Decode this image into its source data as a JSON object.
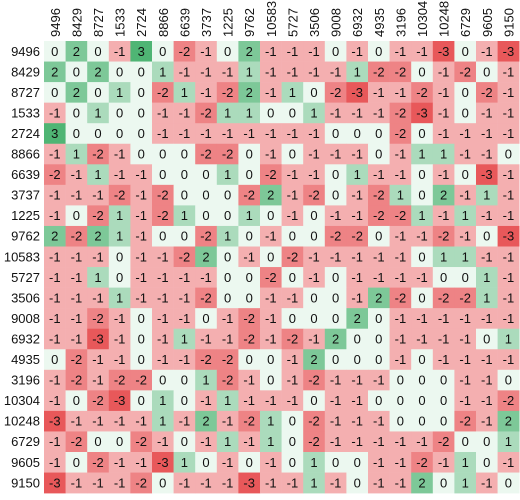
{
  "chart_data": {
    "type": "heatmap",
    "title": "",
    "xlabel": "",
    "ylabel": "",
    "x_categories": [
      "9496",
      "8429",
      "8727",
      "1533",
      "2724",
      "8866",
      "6639",
      "3737",
      "1225",
      "9762",
      "10583",
      "5727",
      "3506",
      "9008",
      "6932",
      "4935",
      "3196",
      "10304",
      "10248",
      "6729",
      "9605",
      "9150"
    ],
    "y_categories": [
      "9496",
      "8429",
      "8727",
      "1533",
      "2724",
      "8866",
      "6639",
      "3737",
      "1225",
      "9762",
      "10583",
      "5727",
      "3506",
      "9008",
      "6932",
      "4935",
      "3196",
      "10304",
      "10248",
      "6729",
      "9605",
      "9150"
    ],
    "x_label_rotation": "vertical (bottom-to-top)",
    "value_range": [
      -3,
      3
    ],
    "color_scale": {
      "negative": "#e8585a",
      "zero": "#ffffff",
      "positive": "#4fb574"
    },
    "grid": false,
    "values": [
      [
        0,
        2,
        0,
        -1,
        3,
        0,
        -2,
        -1,
        0,
        2,
        -1,
        -1,
        -1,
        0,
        -1,
        0,
        -1,
        -1,
        -3,
        0,
        -1,
        -3
      ],
      [
        2,
        0,
        2,
        0,
        0,
        1,
        -1,
        -1,
        -1,
        1,
        -1,
        -1,
        -1,
        -1,
        1,
        -2,
        -2,
        0,
        -1,
        -2,
        0,
        -1
      ],
      [
        0,
        2,
        0,
        1,
        0,
        -2,
        1,
        -1,
        -2,
        2,
        -1,
        1,
        0,
        -2,
        -3,
        -1,
        -1,
        -2,
        -1,
        0,
        -2,
        -1
      ],
      [
        -1,
        0,
        1,
        0,
        0,
        -1,
        -1,
        -2,
        1,
        1,
        0,
        0,
        1,
        -1,
        -1,
        -1,
        -2,
        -3,
        -1,
        0,
        -1,
        -1
      ],
      [
        3,
        0,
        0,
        0,
        0,
        -1,
        -1,
        -1,
        -1,
        -1,
        -1,
        -1,
        -1,
        0,
        0,
        0,
        -2,
        0,
        -1,
        -1,
        -1,
        -1
      ],
      [
        -1,
        1,
        -2,
        -1,
        0,
        0,
        0,
        -2,
        -2,
        0,
        -1,
        0,
        -1,
        -1,
        -1,
        0,
        -1,
        1,
        1,
        -1,
        -1,
        0
      ],
      [
        -2,
        -1,
        1,
        -1,
        -1,
        0,
        0,
        0,
        1,
        0,
        -2,
        -1,
        -1,
        0,
        1,
        -1,
        -1,
        0,
        -1,
        0,
        -3,
        -1
      ],
      [
        -1,
        -1,
        -1,
        -2,
        -1,
        -2,
        0,
        0,
        0,
        -2,
        2,
        -1,
        -2,
        0,
        -1,
        -2,
        1,
        0,
        2,
        -1,
        1,
        -1
      ],
      [
        -1,
        0,
        -2,
        1,
        -1,
        -2,
        1,
        0,
        0,
        1,
        0,
        -1,
        0,
        -1,
        -1,
        -2,
        -2,
        1,
        -1,
        1,
        -1,
        -1
      ],
      [
        2,
        -2,
        2,
        1,
        -1,
        0,
        0,
        -2,
        1,
        0,
        -1,
        0,
        0,
        -2,
        -2,
        0,
        -1,
        -1,
        -2,
        -1,
        0,
        -3
      ],
      [
        -1,
        -1,
        -1,
        0,
        -1,
        -1,
        -2,
        2,
        0,
        -1,
        0,
        -2,
        -1,
        -1,
        -1,
        -1,
        -1,
        0,
        1,
        1,
        -1,
        -1
      ],
      [
        -1,
        -1,
        1,
        0,
        -1,
        -1,
        -1,
        -1,
        0,
        0,
        -2,
        0,
        -1,
        0,
        -1,
        -1,
        -1,
        -1,
        0,
        0,
        1,
        -1
      ],
      [
        -1,
        -1,
        -1,
        1,
        -1,
        -1,
        -1,
        -2,
        0,
        0,
        -1,
        -1,
        0,
        0,
        -1,
        2,
        -2,
        0,
        -2,
        -2,
        1,
        -1
      ],
      [
        -1,
        -1,
        -2,
        -1,
        0,
        -1,
        -1,
        0,
        -1,
        -2,
        -1,
        0,
        0,
        0,
        2,
        0,
        -1,
        -1,
        -1,
        -1,
        -1,
        -1
      ],
      [
        -1,
        -1,
        -3,
        -1,
        0,
        -1,
        1,
        -1,
        -1,
        -2,
        -1,
        -2,
        -1,
        2,
        0,
        0,
        -1,
        -1,
        -1,
        -1,
        0,
        1
      ],
      [
        0,
        -2,
        -1,
        -1,
        0,
        -1,
        -1,
        -2,
        -2,
        0,
        0,
        -1,
        2,
        0,
        0,
        0,
        -1,
        0,
        -1,
        -1,
        -1,
        -1
      ],
      [
        -1,
        -2,
        -1,
        -2,
        -2,
        0,
        0,
        1,
        -2,
        -1,
        0,
        -1,
        -2,
        -1,
        -1,
        -1,
        0,
        0,
        0,
        -1,
        -1,
        0
      ],
      [
        -1,
        0,
        -2,
        -3,
        0,
        1,
        0,
        -1,
        1,
        -1,
        -1,
        -1,
        0,
        -1,
        -1,
        0,
        0,
        0,
        0,
        -1,
        -1,
        -2
      ],
      [
        -3,
        -1,
        -1,
        -1,
        -1,
        1,
        -1,
        2,
        -1,
        -2,
        1,
        0,
        -2,
        -1,
        -1,
        -1,
        0,
        0,
        0,
        -2,
        -1,
        2
      ],
      [
        -1,
        -2,
        0,
        0,
        -2,
        -1,
        0,
        -1,
        1,
        -1,
        1,
        0,
        -2,
        -1,
        -1,
        -1,
        -1,
        -1,
        -2,
        0,
        0,
        1
      ],
      [
        -1,
        0,
        -2,
        -1,
        -1,
        -3,
        1,
        0,
        -1,
        0,
        -1,
        0,
        1,
        0,
        0,
        -1,
        -1,
        -2,
        -1,
        1,
        0,
        -1
      ],
      [
        -3,
        -1,
        -1,
        -1,
        -2,
        0,
        -1,
        -1,
        -1,
        -3,
        -1,
        -1,
        1,
        -1,
        0,
        -1,
        -1,
        2,
        0,
        1,
        -1,
        0
      ]
    ]
  }
}
